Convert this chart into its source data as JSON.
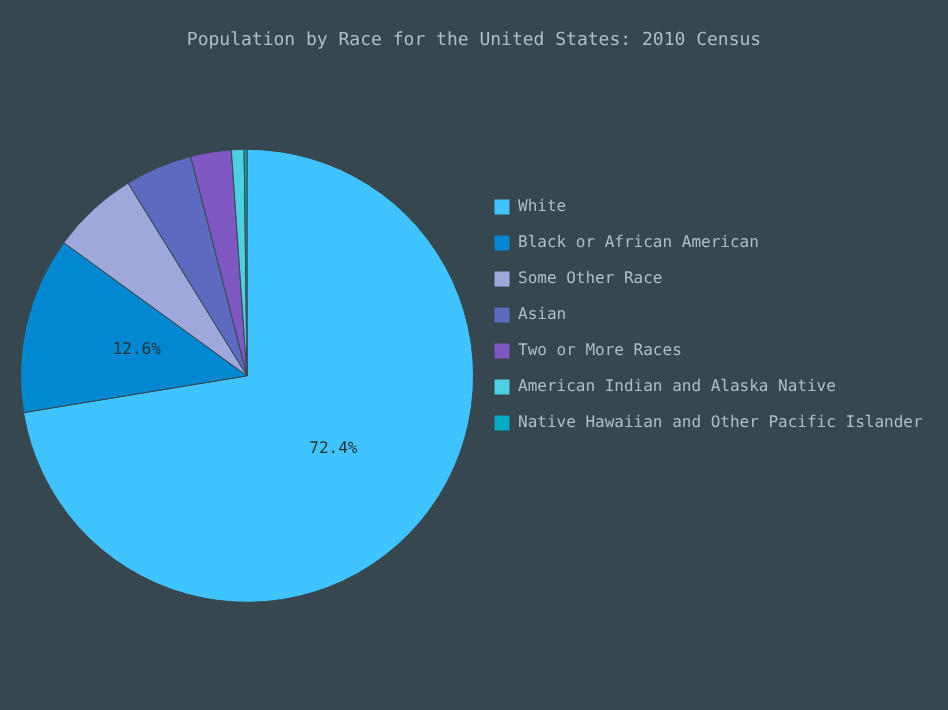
{
  "chart_data": {
    "type": "pie",
    "title": "Population by Race for the United States: 2010 Census",
    "categories": [
      "White",
      "Black or African American",
      "Some Other Race",
      "Asian",
      "Two or More Races",
      "American Indian and Alaska Native",
      "Native Hawaiian and Other Pacific Islander"
    ],
    "values": [
      72.4,
      12.6,
      6.2,
      4.8,
      2.9,
      0.9,
      0.2
    ],
    "colors": [
      "#40c4ff",
      "#0288d1",
      "#9fa8da",
      "#5c6bc0",
      "#7e57c2",
      "#4dd0e1",
      "#00acc1"
    ],
    "value_labels": [
      "72.4%",
      "12.6%",
      null,
      null,
      null,
      null,
      null
    ],
    "legend": "right"
  }
}
